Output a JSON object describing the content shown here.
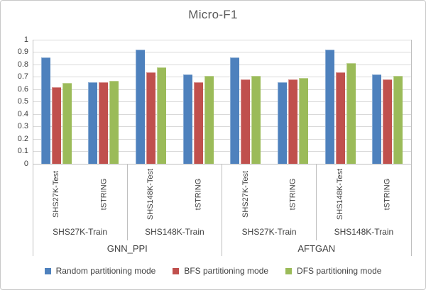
{
  "chart_data": {
    "type": "bar",
    "title": "Micro-F1",
    "xlabel": "",
    "ylabel": "",
    "ylim": [
      0,
      1
    ],
    "ytick_step": 0.1,
    "ytick_labels": [
      "0",
      "0.1",
      "0.2",
      "0.3",
      "0.4",
      "0.5",
      "0.6",
      "0.7",
      "0.8",
      "0.9",
      "1"
    ],
    "grid": true,
    "legend_position": "bottom",
    "categories_level1": [
      "SHS27K-Test",
      "tSTRING",
      "SHS148K-Test",
      "tSTRING",
      "SHS27K-Test",
      "tSTRING",
      "SHS148K-Test",
      "tSTRING"
    ],
    "categories_level2": [
      "SHS27K-Train",
      "SHS148K-Train",
      "SHS27K-Train",
      "SHS148K-Train"
    ],
    "categories_level3": [
      "GNN_PPI",
      "AFTGAN"
    ],
    "series": [
      {
        "name": "Random partitioning mode",
        "color": "#4E81BD",
        "values": [
          0.86,
          0.66,
          0.92,
          0.72,
          0.86,
          0.66,
          0.92,
          0.72
        ]
      },
      {
        "name": "BFS partitioning mode",
        "color": "#C0504D",
        "values": [
          0.62,
          0.66,
          0.74,
          0.66,
          0.68,
          0.68,
          0.74,
          0.68
        ]
      },
      {
        "name": "DFS partitioning mode",
        "color": "#9BBB59",
        "values": [
          0.65,
          0.67,
          0.78,
          0.71,
          0.71,
          0.69,
          0.81,
          0.71
        ]
      }
    ],
    "colors": {
      "gridline": "#d9d9d9",
      "axis": "#bfbfbf",
      "title_text": "#595959",
      "label_text": "#404040"
    }
  }
}
